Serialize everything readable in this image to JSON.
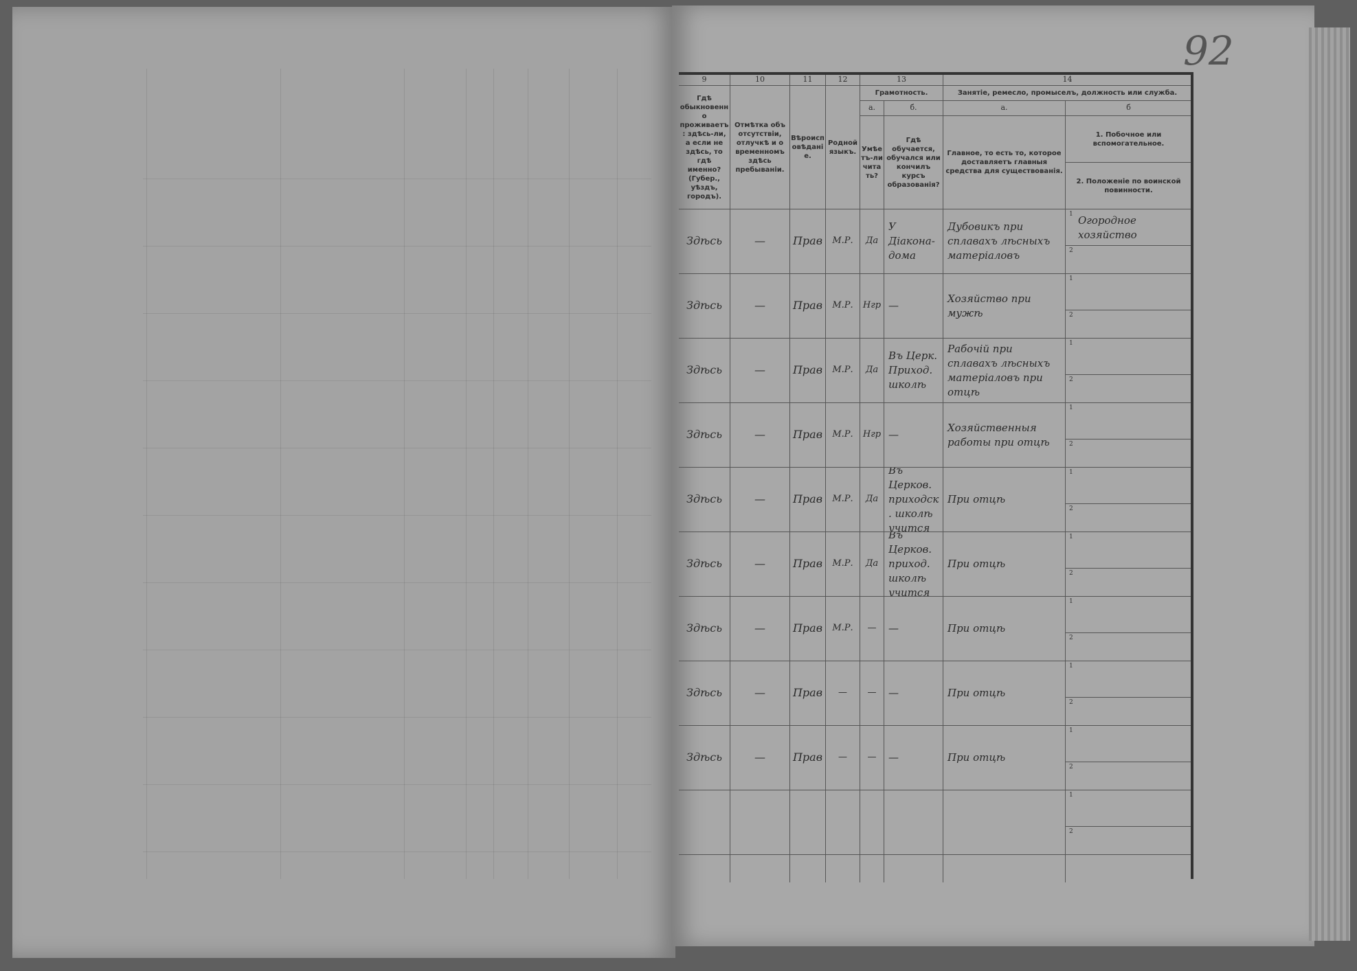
{
  "page_number": "92",
  "header": {
    "col9": {
      "number": "9",
      "label": "Гдѣ обыкновенно проживаетъ: здѣсь-ли, а если не здѣсь, то гдѣ именно? (Губер., уѣздъ, городъ)."
    },
    "col10": {
      "number": "10",
      "label": "Отмѣтка объ отсутствіи, отлучкѣ и о временномъ здѣсь пребываніи."
    },
    "col11": {
      "number": "11",
      "label": "Вѣроисповѣданіе."
    },
    "col12": {
      "number": "12",
      "label": "Родной языкъ."
    },
    "col13": {
      "number": "13",
      "label": "Грамотность.",
      "a_letter": "а.",
      "a_label": "Умѣетъ-ли читать?",
      "b_letter": "б.",
      "b_label": "Гдѣ обучается, обучался или кончилъ курсъ образованія?"
    },
    "col14": {
      "number": "14",
      "label": "Занятіе, ремесло, промыселъ, должность или служба.",
      "a_letter": "а.",
      "a_label": "Главное, то есть то, которое доставляетъ главныя средства для существованія.",
      "b_letter": "б",
      "b1_label": "1. Побочное или вспомогательное.",
      "b2_label": "2. Положеніе по воинской повинности."
    }
  },
  "sub_markers": [
    "1",
    "2"
  ],
  "rows": [
    {
      "residence": "Здѣсь",
      "absence": "—",
      "religion": "Прав",
      "language": "М.Р.",
      "can_read": "Да",
      "school": "У Діакона-дома",
      "occupation": "Дубовикъ при сплавахъ лѣсныхъ матеріаловъ",
      "secondary": "Огородное хозяйство",
      "military": ""
    },
    {
      "residence": "Здѣсь",
      "absence": "—",
      "religion": "Прав",
      "language": "М.Р.",
      "can_read": "Нгр",
      "school": "—",
      "occupation": "Хозяйство при мужѣ",
      "secondary": "",
      "military": ""
    },
    {
      "residence": "Здѣсь",
      "absence": "—",
      "religion": "Прав",
      "language": "М.Р.",
      "can_read": "Да",
      "school": "Въ Церк. Приход. школѣ",
      "occupation": "Рабочій при сплавахъ лѣсныхъ матеріаловъ при отцѣ",
      "secondary": "",
      "military": ""
    },
    {
      "residence": "Здѣсь",
      "absence": "—",
      "religion": "Прав",
      "language": "М.Р.",
      "can_read": "Нгр",
      "school": "—",
      "occupation": "Хозяйственныя работы при отцѣ",
      "secondary": "",
      "military": ""
    },
    {
      "residence": "Здѣсь",
      "absence": "—",
      "religion": "Прав",
      "language": "М.Р.",
      "can_read": "Да",
      "school": "Въ Церков. приходск. школѣ учится",
      "occupation": "При отцѣ",
      "secondary": "",
      "military": ""
    },
    {
      "residence": "Здѣсь",
      "absence": "—",
      "religion": "Прав",
      "language": "М.Р.",
      "can_read": "Да",
      "school": "Въ Церков. приход. школѣ учится",
      "occupation": "При отцѣ",
      "secondary": "",
      "military": ""
    },
    {
      "residence": "Здѣсь",
      "absence": "—",
      "religion": "Прав",
      "language": "М.Р.",
      "can_read": "—",
      "school": "—",
      "occupation": "При отцѣ",
      "secondary": "",
      "military": ""
    },
    {
      "residence": "Здѣсь",
      "absence": "—",
      "religion": "Прав",
      "language": "—",
      "can_read": "—",
      "school": "—",
      "occupation": "При отцѣ",
      "secondary": "",
      "military": ""
    },
    {
      "residence": "Здѣсь",
      "absence": "—",
      "religion": "Прав",
      "language": "—",
      "can_read": "—",
      "school": "—",
      "occupation": "При отцѣ",
      "secondary": "",
      "military": ""
    },
    {
      "residence": "",
      "absence": "",
      "religion": "",
      "language": "",
      "can_read": "",
      "school": "",
      "occupation": "",
      "secondary": "",
      "military": ""
    }
  ]
}
